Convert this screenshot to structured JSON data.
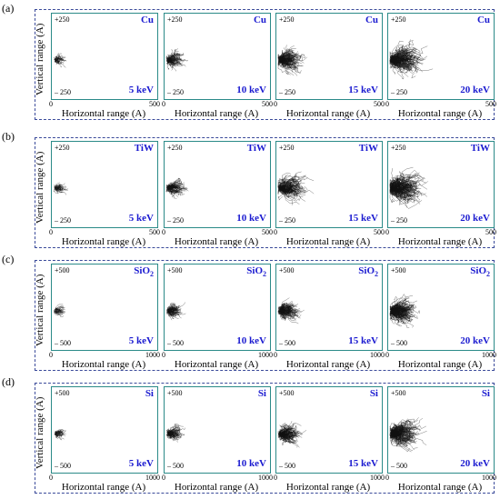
{
  "rows": [
    {
      "letter": "(a)",
      "material": "Cu",
      "sub": "",
      "y_top": "+250",
      "y_bot": "– 250",
      "x_min": "0",
      "x_max": "500",
      "ylabel": "Vertical range (A)",
      "xlabel": "Horizontal range (A)",
      "energies": [
        "5 keV",
        "10 keV",
        "15 keV",
        "20 keV"
      ],
      "spread": [
        0.1,
        0.18,
        0.28,
        0.38
      ]
    },
    {
      "letter": "(b)",
      "material": "TiW",
      "sub": "",
      "y_top": "+250",
      "y_bot": "– 250",
      "x_min": "0",
      "x_max": "500",
      "ylabel": "Vertical range (A)",
      "xlabel": "Horizontal range (A)",
      "energies": [
        "5 keV",
        "10 keV",
        "15 keV",
        "20 keV"
      ],
      "spread": [
        0.1,
        0.2,
        0.32,
        0.42
      ]
    },
    {
      "letter": "(c)",
      "material": "SiO",
      "sub": "2",
      "y_top": "+500",
      "y_bot": "– 500",
      "x_min": "0",
      "x_max": "1000",
      "ylabel": "Vertical range (A)",
      "xlabel": "Horizontal range (A)",
      "energies": [
        "5 keV",
        "10 keV",
        "15 keV",
        "20 keV"
      ],
      "spread": [
        0.08,
        0.14,
        0.22,
        0.3
      ]
    },
    {
      "letter": "(d)",
      "material": "Si",
      "sub": "",
      "y_top": "+500",
      "y_bot": "– 500",
      "x_min": "0",
      "x_max": "1000",
      "ylabel": "Vertical range (A)",
      "xlabel": "Horizontal range (A)",
      "energies": [
        "5 keV",
        "10 keV",
        "15 keV",
        "20 keV"
      ],
      "spread": [
        0.08,
        0.15,
        0.24,
        0.33
      ]
    }
  ]
}
